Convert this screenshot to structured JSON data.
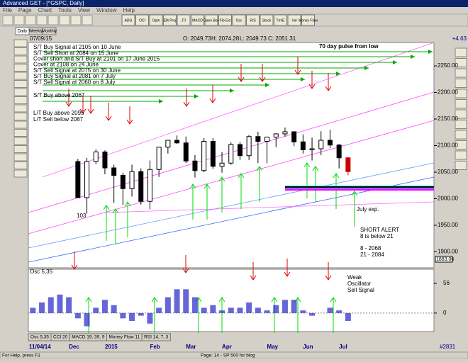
{
  "window": {
    "title": "Advanced GET - [^GSPC, Daily]",
    "menu": [
      "File",
      "Page",
      "Chart",
      "Tools",
      "View",
      "Window",
      "Help"
    ],
    "toolbar": [
      "ADG",
      "OCI",
      "Optn",
      "Ellt Proj",
      "JTI",
      "MACD",
      "Gann Box",
      "Fib Ext",
      "Osc",
      "R/S",
      "Stock",
      "Tm/E",
      "Vol",
      "Money Flow"
    ],
    "tabs": [
      "Daily",
      "Weekly",
      "Monthly"
    ],
    "indicator_tabs": [
      "Osc 5,35",
      "CCI 20",
      "MACD 19, 39, 9",
      "Money Flow 11",
      "RSI 14, 7, 3"
    ],
    "status": {
      "help": "For Help, press F1",
      "page": "Page: 14 - SP 500 for blog",
      "count": "#2831"
    }
  },
  "header": {
    "date": "07/09/15",
    "open": "O: 2049.73",
    "high": "H: 2074.28",
    "low": "L: 2049.73",
    "close": "C: 2051.31",
    "change": "+4.63"
  },
  "annotations": {
    "pulse": "70 day pulse from low",
    "signals": [
      "S/T Buy Signal at 2105 on 10 June",
      "S/T Sell Short at 2084 on 15 June",
      "Cover short and S/T Buy at 2101 on 17 June 2015",
      "Cover at 2108 on 24 June",
      "S/T Sell Signal at 2075 on 30 June",
      "S/T Buy Signal at 2081 on 7 July",
      "S/T Sell Signal at 2060 on 8 July"
    ],
    "buy": "S/T Buy above 2067",
    "lt_buy": "L/T Buy above 2095",
    "lt_sell": "L/T Sell below 2087",
    "count": "103",
    "expiry": "July exp.",
    "alert": [
      "SHORT ALERT",
      "8 is below 21",
      "8  - 2068",
      "21 - 2084"
    ],
    "last": "1883.06",
    "osc_note": [
      "Weak",
      "Oscillator",
      "Sell Signal"
    ]
  },
  "chart_data": [
    {
      "type": "candlestick",
      "color": "#000000",
      "last_color": "#cc0000",
      "categories": [
        "11/04/14",
        null,
        null,
        null,
        "Dec",
        null,
        null,
        null,
        "2015",
        null,
        null,
        null,
        null,
        "Feb",
        null,
        null,
        null,
        "Mar",
        null,
        null,
        null,
        "Apr",
        null,
        null,
        null,
        null,
        "May",
        null,
        null,
        null,
        "Jun",
        null,
        null,
        null,
        "Jul",
        null
      ],
      "open": [
        null,
        null,
        null,
        null,
        null,
        2070,
        2002,
        2070,
        2088,
        2058,
        2044,
        2019,
        2051,
        1995,
        2055,
        2097,
        2110,
        2105,
        2071,
        2053,
        2108,
        2061,
        2067,
        2102,
        2081,
        2117,
        2108,
        2116,
        2122,
        2126,
        2107,
        2092,
        2094,
        2110,
        2101,
        2077
      ],
      "high": [
        null,
        null,
        null,
        null,
        null,
        2075,
        2077,
        2093,
        2091,
        2064,
        2049,
        2064,
        2057,
        2072,
        2097,
        2110,
        2119,
        2117,
        2082,
        2114,
        2114,
        2088,
        2106,
        2107,
        2120,
        2126,
        2117,
        2123,
        2134,
        2127,
        2121,
        2115,
        2127,
        2130,
        2103,
        2078
      ],
      "low": [
        null,
        null,
        null,
        null,
        null,
        2002,
        1972,
        2065,
        2046,
        1992,
        1988,
        2004,
        1989,
        1980,
        2041,
        2085,
        2103,
        2067,
        2040,
        2050,
        2056,
        2049,
        2064,
        2073,
        2073,
        2067,
        2067,
        2097,
        2117,
        2099,
        2085,
        2072,
        2082,
        2095,
        2057,
        2044
      ],
      "close": [
        null,
        null,
        null,
        null,
        null,
        2002,
        2070,
        2088,
        2058,
        2044,
        2019,
        2051,
        1995,
        2055,
        2097,
        2110,
        2105,
        2071,
        2053,
        2108,
        2061,
        2067,
        2102,
        2081,
        2117,
        2108,
        2116,
        2122,
        2126,
        2107,
        2092,
        2094,
        2110,
        2101,
        2077,
        2051
      ],
      "ylim": [
        1870,
        2294
      ],
      "yticks": [
        {
          "value": 1900,
          "label": "1900.00"
        },
        {
          "value": 1950,
          "label": "1950.00"
        },
        {
          "value": 2000,
          "label": "2000.00"
        },
        {
          "value": 2050,
          "label": "2050.00"
        },
        {
          "value": 2100,
          "label": "2100.00"
        },
        {
          "value": 2150,
          "label": "2150.00"
        },
        {
          "value": 2200,
          "label": "2200.00"
        },
        {
          "value": 2250,
          "label": "2250.00"
        }
      ]
    },
    {
      "type": "histogram",
      "title": "Osc 5,35",
      "color": "#3333cc",
      "values": [
        10,
        20,
        30,
        35,
        30,
        -10,
        -25,
        10,
        25,
        15,
        -10,
        -15,
        -5,
        -20,
        10,
        30,
        45,
        45,
        30,
        10,
        15,
        5,
        10,
        10,
        20,
        10,
        5,
        15,
        25,
        25,
        5,
        -5,
        0,
        10,
        5,
        -15
      ],
      "ylim": [
        -35,
        83
      ],
      "yticks": [
        0,
        56
      ]
    }
  ]
}
